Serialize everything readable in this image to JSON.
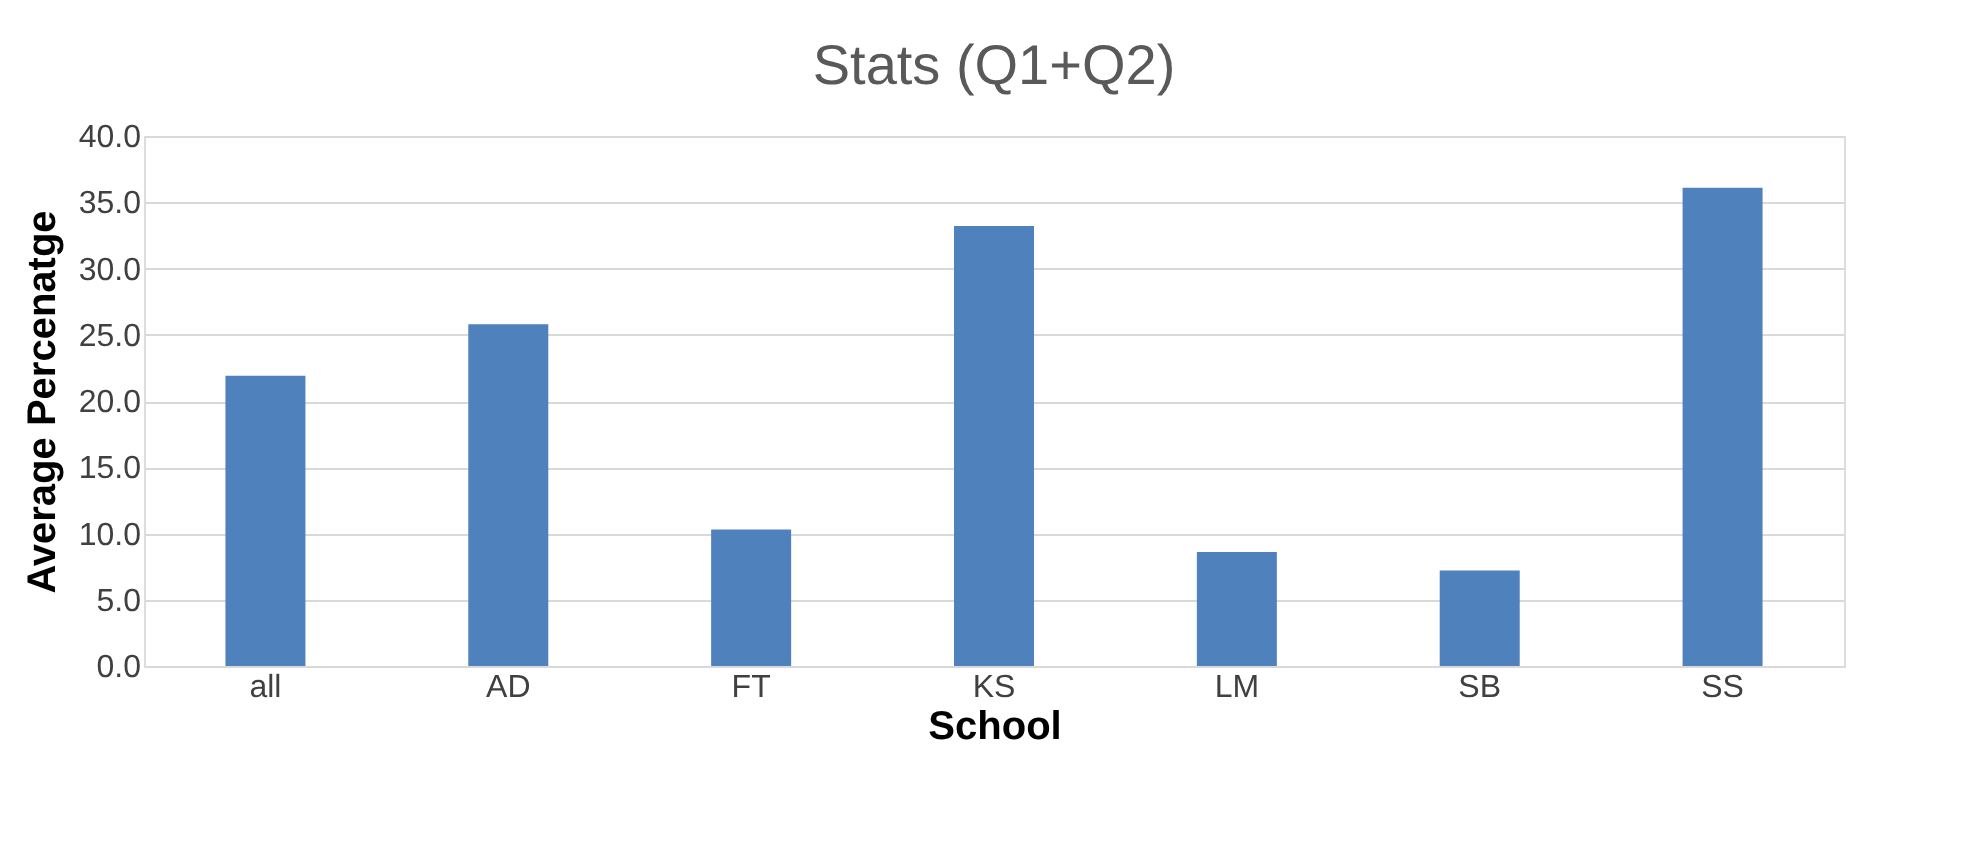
{
  "chart_data": {
    "type": "bar",
    "title": "Stats (Q1+Q2)",
    "xlabel": "School",
    "ylabel": "Average Percenatge",
    "categories": [
      "all",
      "AD",
      "FT",
      "KS",
      "LM",
      "SB",
      "SS"
    ],
    "series": [
      {
        "color": "#4f81bd",
        "values": [
          21.9,
          25.8,
          10.3,
          33.2,
          8.6,
          7.2,
          36.1
        ]
      }
    ],
    "ylim": [
      0,
      40
    ],
    "yticks": [
      {
        "value": 0,
        "label": "0.0"
      },
      {
        "value": 5,
        "label": "5.0"
      },
      {
        "value": 10,
        "label": "10.0"
      },
      {
        "value": 15,
        "label": "15.0"
      },
      {
        "value": 20,
        "label": "20.0"
      },
      {
        "value": 25,
        "label": "25.0"
      },
      {
        "value": 30,
        "label": "30.0"
      },
      {
        "value": 35,
        "label": "35.0"
      },
      {
        "value": 40,
        "label": "40.0"
      }
    ],
    "grid": "y",
    "legend": false
  }
}
